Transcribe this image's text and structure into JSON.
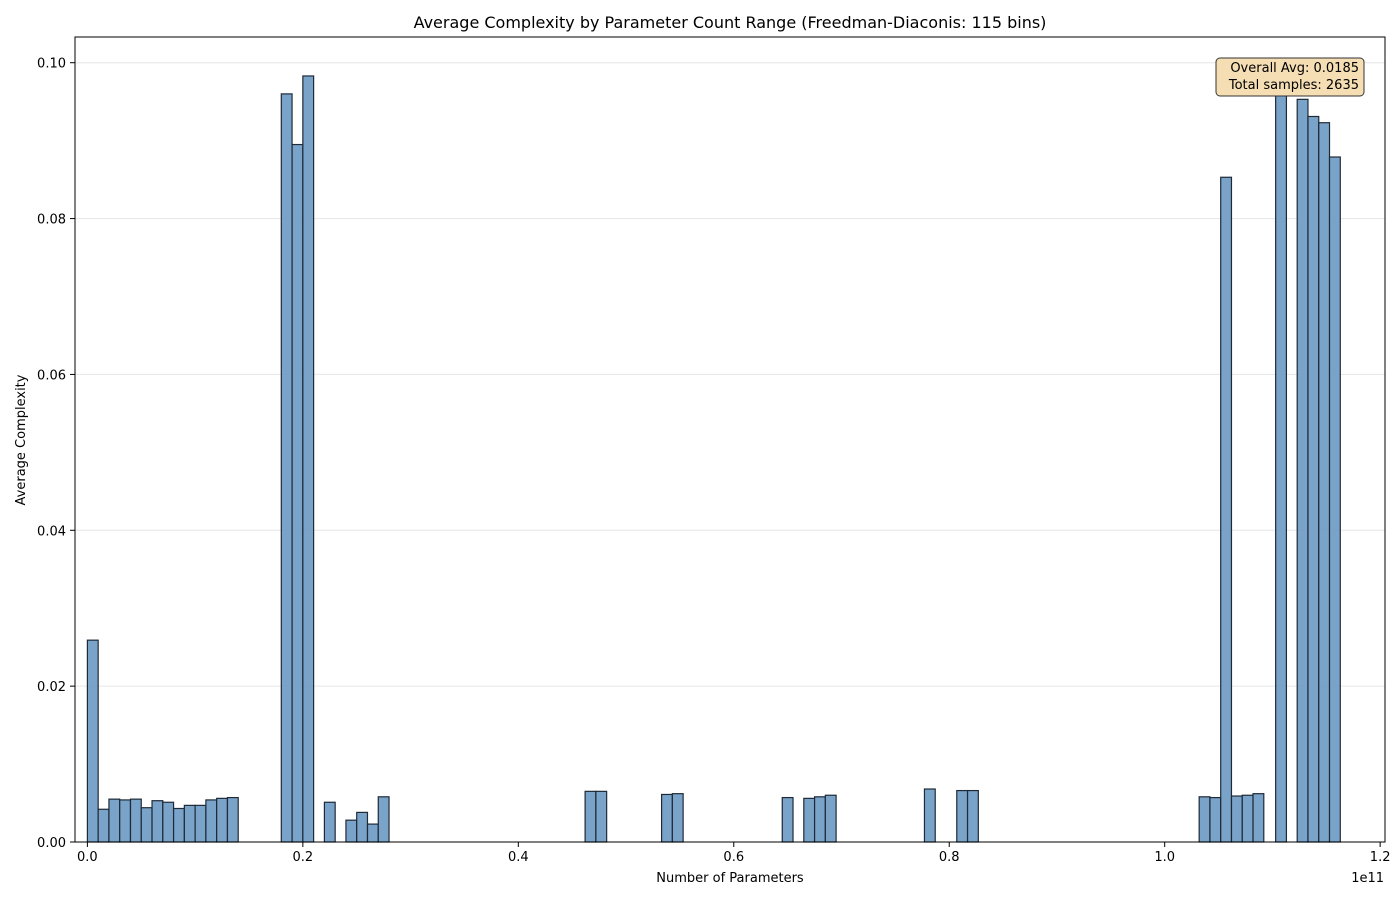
{
  "chart_data": {
    "type": "bar",
    "title": "Average Complexity by Parameter Count Range (Freedman-Diaconis: 115 bins)",
    "xlabel": "Number of Parameters",
    "ylabel": "Average Complexity",
    "x_offset_label": "1e11",
    "xlim": [
      -0.0115,
      1.2045
    ],
    "ylim": [
      0,
      0.1033
    ],
    "x_unit": "1e11",
    "bin_width": 0.01,
    "x_ticks": [
      0.0,
      0.2,
      0.4,
      0.6,
      0.8,
      1.0,
      1.2
    ],
    "x_tick_labels": [
      "0.0",
      "0.2",
      "0.4",
      "0.6",
      "0.8",
      "1.0",
      "1.2"
    ],
    "y_ticks": [
      0.0,
      0.02,
      0.04,
      0.06,
      0.08,
      0.1
    ],
    "y_tick_labels": [
      "0.00",
      "0.02",
      "0.04",
      "0.06",
      "0.08",
      "0.10"
    ],
    "grid": "horizontal",
    "x": [
      0.005,
      0.015,
      0.025,
      0.035,
      0.045,
      0.055,
      0.065,
      0.075,
      0.085,
      0.095,
      0.105,
      0.115,
      0.125,
      0.135,
      0.185,
      0.195,
      0.205,
      0.225,
      0.245,
      0.255,
      0.265,
      0.275,
      0.467,
      0.477,
      0.538,
      0.548,
      0.65,
      0.67,
      0.68,
      0.69,
      0.782,
      0.812,
      0.822,
      1.037,
      1.047,
      1.057,
      1.067,
      1.077,
      1.087,
      1.108,
      1.128,
      1.138,
      1.148,
      1.158
    ],
    "values": [
      0.0259,
      0.0042,
      0.0055,
      0.0054,
      0.0055,
      0.0044,
      0.0053,
      0.0051,
      0.0043,
      0.0047,
      0.0047,
      0.0054,
      0.0056,
      0.0057,
      0.096,
      0.0895,
      0.0983,
      0.0051,
      0.0028,
      0.0038,
      0.0023,
      0.0058,
      0.0065,
      0.0065,
      0.0061,
      0.0062,
      0.0057,
      0.0056,
      0.0058,
      0.006,
      0.0068,
      0.0066,
      0.0066,
      0.0058,
      0.0057,
      0.0853,
      0.0059,
      0.006,
      0.0062,
      0.0983,
      0.0953,
      0.0931,
      0.0923,
      0.0879
    ],
    "annotation": {
      "lines": [
        "Overall Avg: 0.0185",
        "Total samples: 2635"
      ],
      "placement": "top-right"
    },
    "colors": {
      "bar_fill": "#6f9bc4",
      "bar_edge": "#1f2a36",
      "annotation_bg": "#f5deb3"
    }
  }
}
